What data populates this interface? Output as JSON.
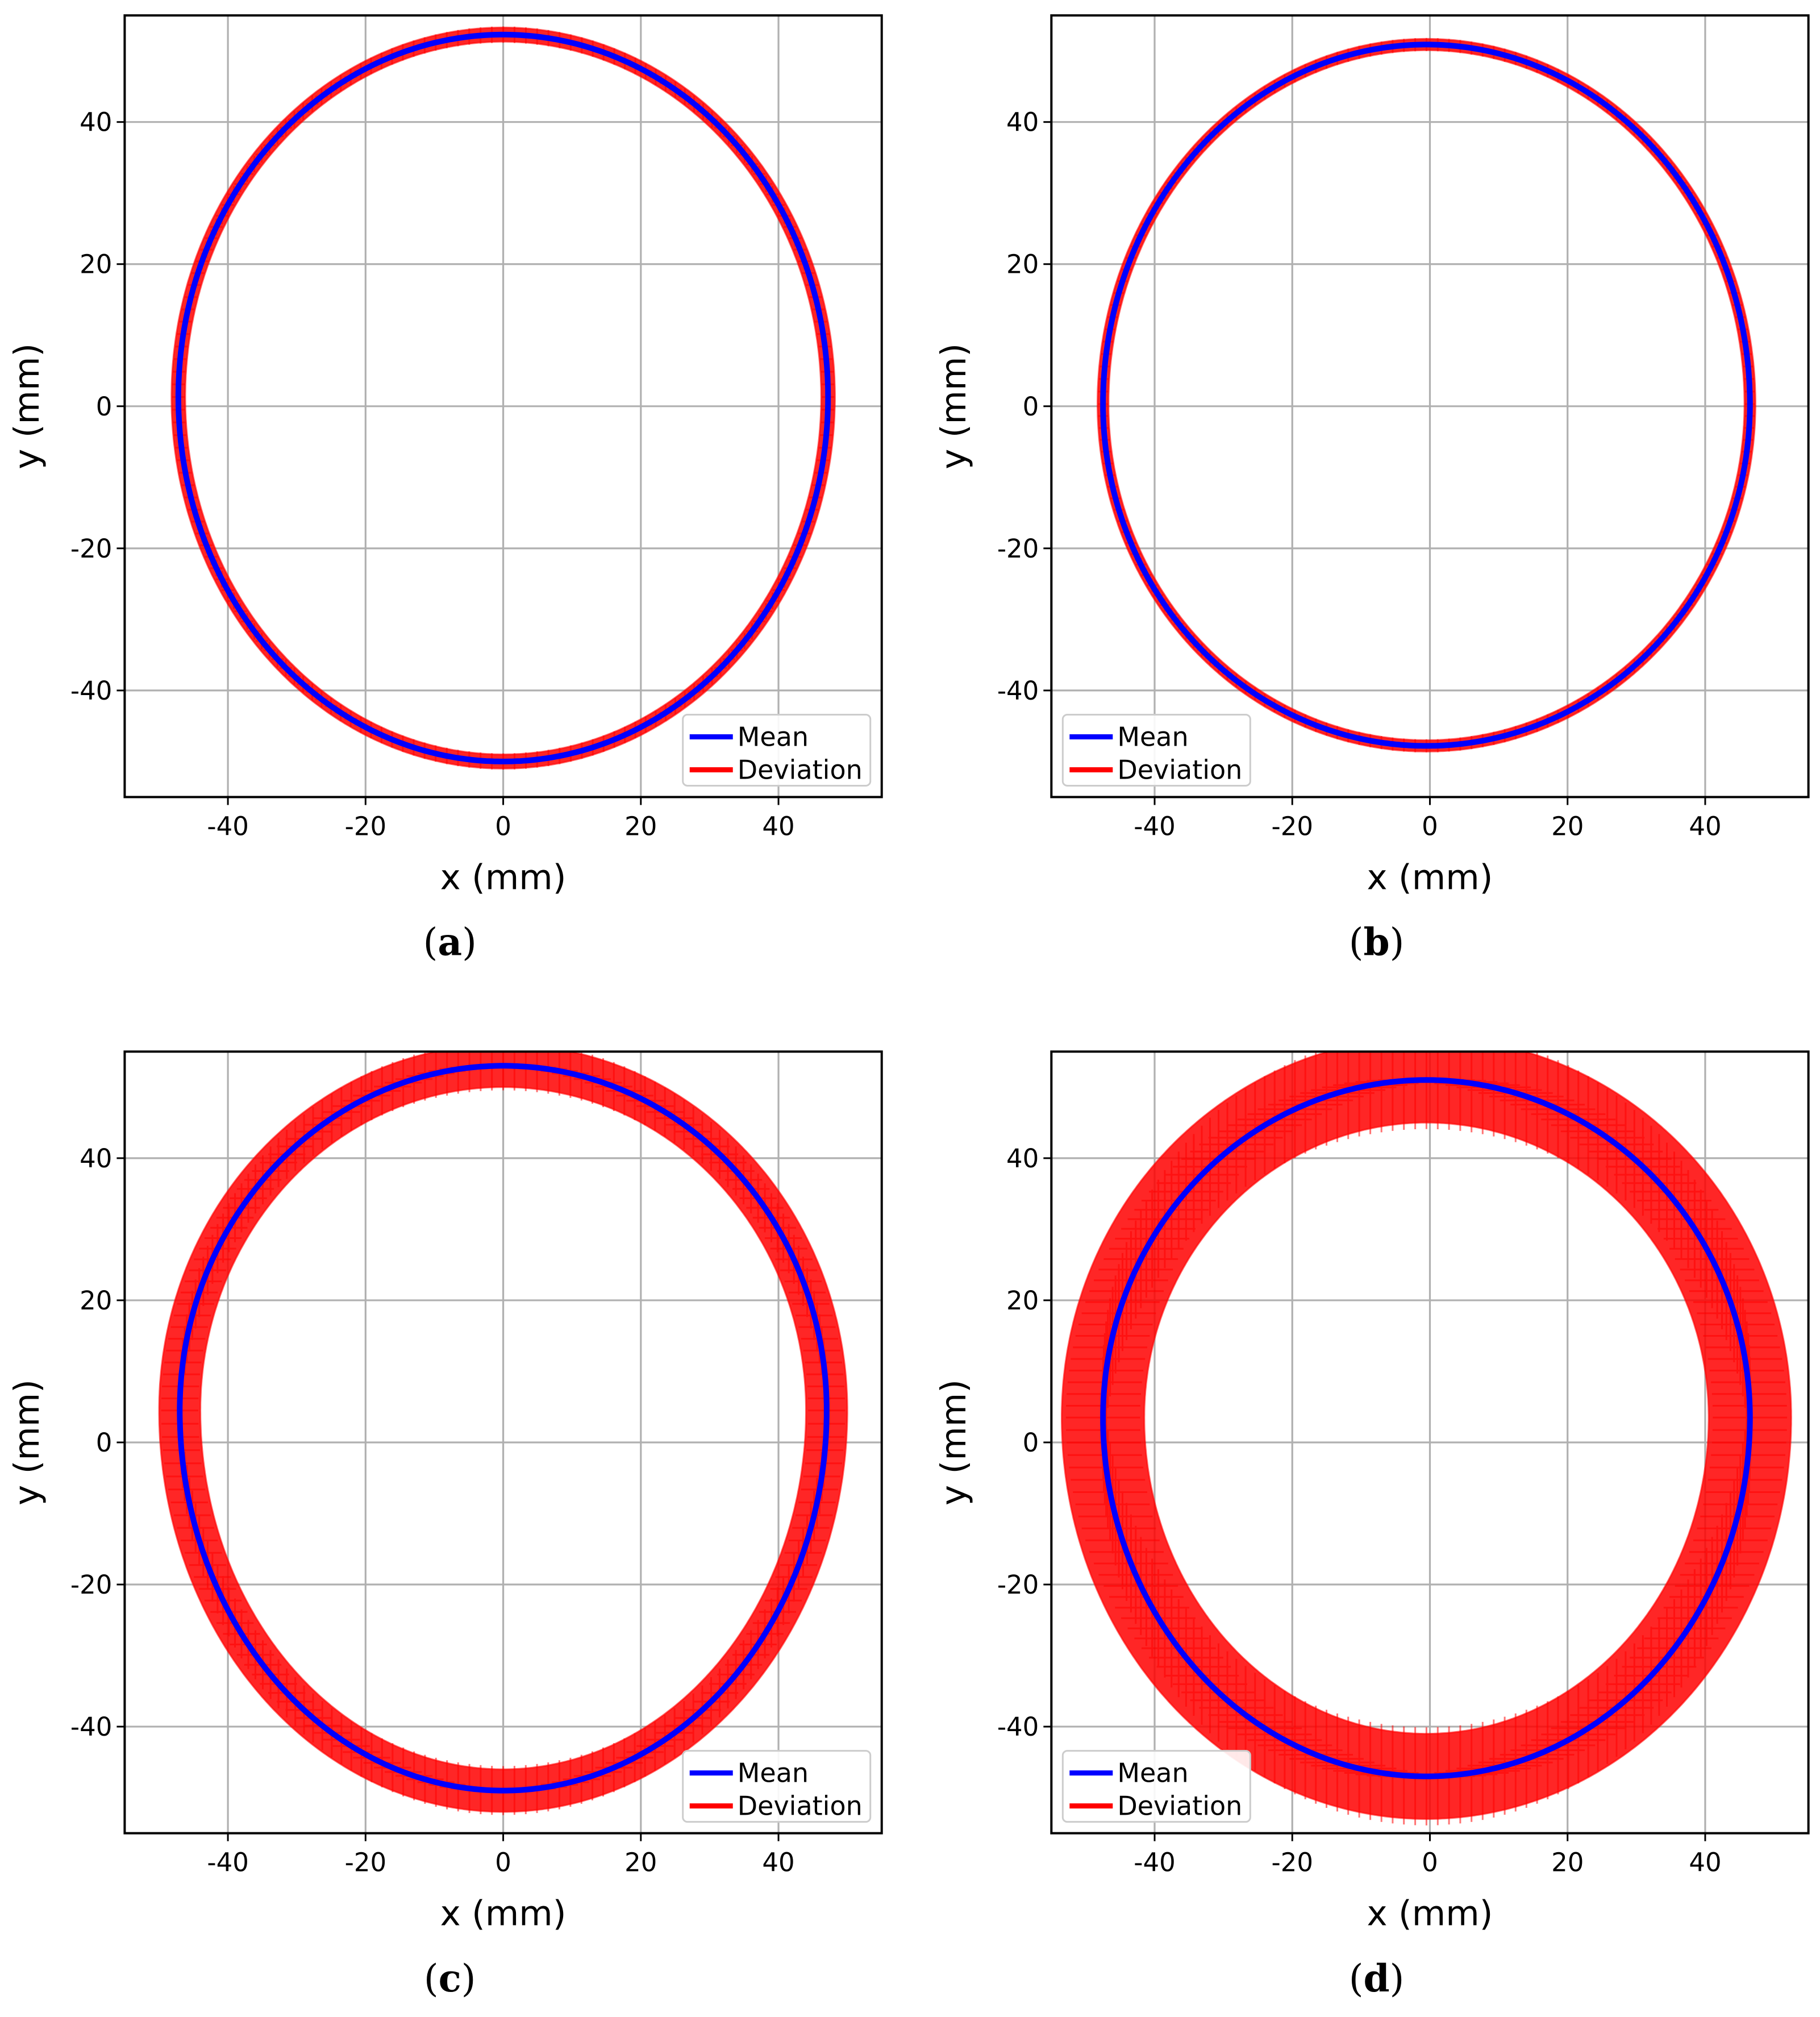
{
  "chart_data": [
    {
      "type": "scatter",
      "panel_label": "a",
      "caption_open": "(",
      "caption_close": ")",
      "xlabel": "x (mm)",
      "ylabel": "y (mm)",
      "xlim": [
        -55,
        55
      ],
      "ylim": [
        -55,
        55
      ],
      "xticks": [
        -40,
        -20,
        0,
        20,
        40
      ],
      "yticks": [
        -40,
        -20,
        0,
        20,
        40
      ],
      "xtick_labels": [
        "-40",
        "-20",
        "0",
        "20",
        "40"
      ],
      "ytick_labels": [
        "-40",
        "-20",
        "0",
        "20",
        "40"
      ],
      "grid": true,
      "legend": {
        "position": "lower-right",
        "entries": [
          "Mean",
          "Deviation"
        ]
      },
      "series": [
        {
          "name": "Mean",
          "color": "#0000ff",
          "shape": {
            "cx": 0,
            "cy": 1.3,
            "rx": 47.2,
            "rtop": 51.0,
            "rbot": 51.3,
            "peak_x": -2.5
          },
          "deviation": 1.0
        },
        {
          "name": "Deviation",
          "color": "#ff0000"
        }
      ]
    },
    {
      "type": "scatter",
      "panel_label": "b",
      "caption_open": "(",
      "caption_close": ")",
      "xlabel": "x (mm)",
      "ylabel": "y (mm)",
      "xlim": [
        -55,
        55
      ],
      "ylim": [
        -55,
        55
      ],
      "xticks": [
        -40,
        -20,
        0,
        20,
        40
      ],
      "yticks": [
        -40,
        -20,
        0,
        20,
        40
      ],
      "xtick_labels": [
        "-40",
        "-20",
        "0",
        "20",
        "40"
      ],
      "ytick_labels": [
        "-40",
        "-20",
        "0",
        "20",
        "40"
      ],
      "grid": true,
      "legend": {
        "position": "lower-left",
        "entries": [
          "Mean",
          "Deviation"
        ]
      },
      "series": [
        {
          "name": "Mean",
          "color": "#0000ff",
          "shape": {
            "cx": -0.5,
            "cy": 0.3,
            "rx": 47.0,
            "rtop": 50.6,
            "rbot": 48.1,
            "peak_x": 3.0
          },
          "deviation": 0.8
        },
        {
          "name": "Deviation",
          "color": "#ff0000"
        }
      ]
    },
    {
      "type": "scatter",
      "panel_label": "c",
      "caption_open": "(",
      "caption_close": ")",
      "xlabel": "x (mm)",
      "ylabel": "y (mm)",
      "xlim": [
        -55,
        55
      ],
      "ylim": [
        -55,
        55
      ],
      "xticks": [
        -40,
        -20,
        0,
        20,
        40
      ],
      "yticks": [
        -40,
        -20,
        0,
        20,
        40
      ],
      "xtick_labels": [
        "-40",
        "-20",
        "0",
        "20",
        "40"
      ],
      "ytick_labels": [
        "-40",
        "-20",
        "0",
        "20",
        "40"
      ],
      "grid": true,
      "legend": {
        "position": "lower-right",
        "entries": [
          "Mean",
          "Deviation"
        ]
      },
      "series": [
        {
          "name": "Mean",
          "color": "#0000ff",
          "shape": {
            "cx": 0,
            "cy": 4.5,
            "rx": 47.0,
            "rtop": 48.5,
            "rbot": 53.5,
            "peak_x": -3.5
          },
          "deviation": 3.0
        },
        {
          "name": "Deviation",
          "color": "#ff0000"
        }
      ]
    },
    {
      "type": "scatter",
      "panel_label": "d",
      "caption_open": "(",
      "caption_close": ")",
      "xlabel": "x (mm)",
      "ylabel": "y (mm)",
      "xlim": [
        -55,
        55
      ],
      "ylim": [
        -55,
        55
      ],
      "xticks": [
        -40,
        -20,
        0,
        20,
        40
      ],
      "yticks": [
        -40,
        -20,
        0,
        20,
        40
      ],
      "xtick_labels": [
        "-40",
        "-20",
        "0",
        "20",
        "40"
      ],
      "ytick_labels": [
        "-40",
        "-20",
        "0",
        "20",
        "40"
      ],
      "grid": true,
      "legend": {
        "position": "lower-left",
        "entries": [
          "Mean",
          "Deviation"
        ]
      },
      "series": [
        {
          "name": "Mean",
          "color": "#0000ff",
          "shape": {
            "cx": -0.5,
            "cy": 3.5,
            "rx": 47.0,
            "rtop": 47.5,
            "rbot": 50.5,
            "peak_x": 1.0
          },
          "deviation": 6.0
        },
        {
          "name": "Deviation",
          "color": "#ff0000"
        }
      ]
    }
  ]
}
